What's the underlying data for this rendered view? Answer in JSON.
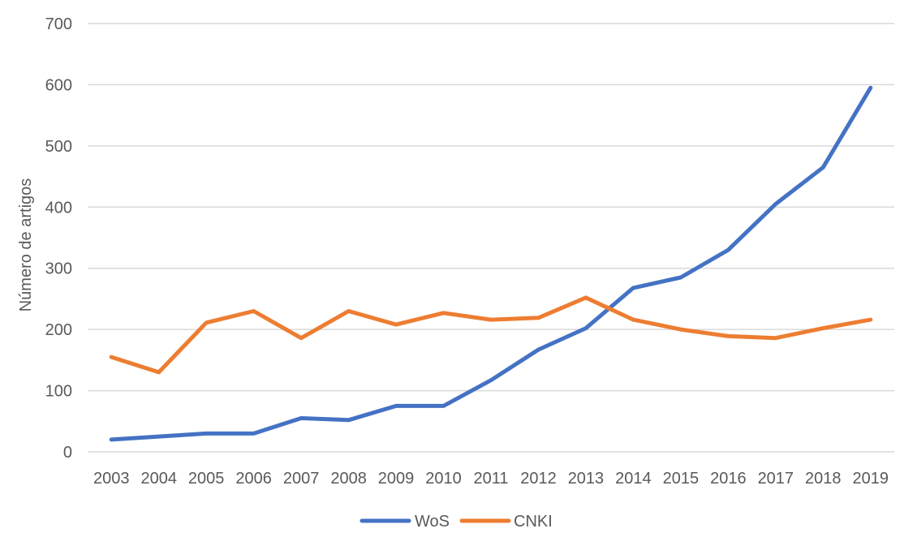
{
  "chart_data": {
    "type": "line",
    "title": "",
    "xlabel": "",
    "ylabel": "Número de artigos",
    "ylim": [
      0,
      700
    ],
    "yticks": [
      0,
      100,
      200,
      300,
      400,
      500,
      600,
      700
    ],
    "grid": true,
    "legend_position": "bottom",
    "categories": [
      "2003",
      "2004",
      "2005",
      "2006",
      "2007",
      "2008",
      "2009",
      "2010",
      "2011",
      "2012",
      "2013",
      "2014",
      "2015",
      "2016",
      "2017",
      "2018",
      "2019"
    ],
    "series": [
      {
        "name": "WoS",
        "color": "#4472c4",
        "values": [
          20,
          25,
          30,
          30,
          55,
          52,
          75,
          75,
          117,
          167,
          202,
          268,
          285,
          330,
          405,
          465,
          595
        ]
      },
      {
        "name": "CNKI",
        "color": "#ed7d31",
        "values": [
          155,
          130,
          211,
          230,
          186,
          230,
          208,
          227,
          216,
          219,
          252,
          216,
          200,
          189,
          186,
          202,
          216
        ]
      }
    ]
  }
}
